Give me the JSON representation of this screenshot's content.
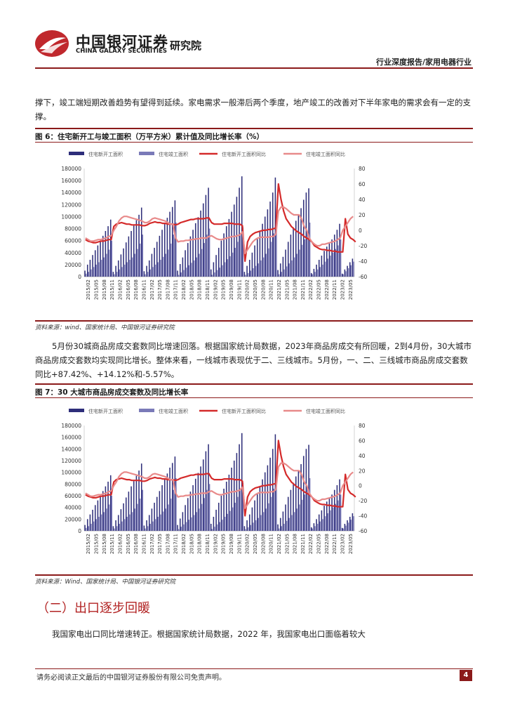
{
  "header": {
    "brand_cn": "中国银河证券",
    "brand_en": "CHINA GALAXY SECURITIES",
    "brand_inst": "研究院",
    "report_type": "行业深度报告/家用电器行业"
  },
  "paragraphs": [
    "撑下，竣工端短期改善趋势有望得到延续。家电需求一般滞后两个季度，地产竣工的改善对下半年家电的需求会有一定的支撑。",
    "5月份30城商品房成交套数同比增速回落。根据国家统计局数据，2023年商品房成交有所回暖，2到4月份，30大城市商品房成交套数均实现同比增长。整体来看，一线城市表现优于二、三线城市。5月份，一、二、三线城市商品房成交套数同比+87.42%、+14.12%和-5.57%。",
    "我国家电出口同比增速转正。根据国家统计局数据，2022 年，我国家电出口面临着较大"
  ],
  "figures": [
    {
      "title": "图 6：住宅新开工与竣工面积（万平方米）累计值及同比增长率（%）",
      "source": "资料来源：wind、国家统计局、中国银河证券研究院"
    },
    {
      "title": "图 7：30 大城市商品房成交套数及同比增长率",
      "source": "资料来源：Wind、国家统计局、中国银河证券研究院"
    }
  ],
  "section_title": "（二）出口逐步回暖",
  "footer": {
    "note": "请务必阅读正文最后的中国银河证券股份有限公司免责声明。",
    "page": "4"
  },
  "colors": {
    "brand": "#8b1a1a",
    "series_new": "#2e2e7a",
    "series_done": "#7a7ab8",
    "line_new": "#d42a2a",
    "line_done": "#e88a8a"
  },
  "chart_data": [
    {
      "type": "bar",
      "series": [
        {
          "name": "住宅新开工面积",
          "kind": "bar",
          "axis": "left",
          "values": [
            10000,
            20000,
            28000,
            36000,
            44000,
            52000,
            60000,
            68000,
            76000,
            84000,
            95000,
            8000,
            18000,
            27000,
            37000,
            47000,
            57000,
            67000,
            76000,
            85000,
            94000,
            103000,
            115000,
            9000,
            18000,
            27000,
            38000,
            48000,
            58000,
            68000,
            78000,
            88000,
            98000,
            108000,
            116000,
            127000,
            10000,
            21000,
            32000,
            44000,
            56000,
            67000,
            78000,
            89000,
            99000,
            110000,
            122000,
            136000,
            148000,
            12000,
            24000,
            36000,
            48000,
            60000,
            72000,
            84000,
            96000,
            108000,
            120000,
            133000,
            148000,
            167000,
            8000,
            18000,
            28000,
            40000,
            52000,
            64000,
            76000,
            88000,
            100000,
            112000,
            125000,
            140000,
            165000,
            11000,
            22000,
            33000,
            45000,
            58000,
            70000,
            82000,
            93000,
            103000,
            114000,
            128000,
            140000,
            147000,
            6000,
            13000,
            20000,
            28000,
            35000,
            43000,
            50000,
            56000,
            62000,
            70000,
            78000,
            88000,
            5000,
            12000,
            18000,
            24000,
            30000
          ]
        },
        {
          "name": "住宅竣工面积",
          "kind": "bar",
          "axis": "left",
          "values": [
            5000,
            8000,
            12000,
            16000,
            20000,
            24000,
            28000,
            32000,
            38000,
            45000,
            60000,
            4000,
            8000,
            12000,
            16000,
            20000,
            24000,
            28000,
            32000,
            38000,
            46000,
            55000,
            70000,
            4000,
            8000,
            12000,
            16000,
            20000,
            24000,
            28000,
            33000,
            38000,
            45000,
            55000,
            70000,
            90000,
            3000,
            7000,
            11000,
            15000,
            19000,
            23000,
            27000,
            32000,
            38000,
            46000,
            56000,
            70000,
            80000,
            3000,
            7000,
            11000,
            15000,
            19000,
            24000,
            29000,
            34000,
            40000,
            48000,
            58000,
            72000,
            82000,
            3000,
            6000,
            10000,
            14000,
            18000,
            22000,
            27000,
            32000,
            38000,
            47000,
            58000,
            72000,
            85000,
            4000,
            8000,
            12000,
            17000,
            22000,
            27000,
            32000,
            38000,
            45000,
            53000,
            62000,
            75000,
            90000,
            4000,
            8000,
            12000,
            16000,
            20000,
            25000,
            30000,
            35000,
            40000,
            46000,
            52000,
            62000,
            4000,
            9000,
            14000,
            19000,
            25000
          ]
        },
        {
          "name": "住宅新开工面积同比",
          "kind": "line",
          "axis": "right",
          "values": [
            -12,
            -14,
            -15,
            -16,
            -16,
            -15,
            -14,
            -14,
            -13,
            -12,
            -12,
            5,
            8,
            9,
            10,
            9,
            8,
            8,
            7,
            7,
            7,
            7,
            6,
            6,
            7,
            9,
            10,
            11,
            10,
            10,
            9,
            9,
            8,
            8,
            8,
            7,
            8,
            10,
            11,
            12,
            13,
            14,
            14,
            15,
            15,
            15,
            15,
            16,
            16,
            10,
            8,
            8,
            8,
            8,
            9,
            9,
            9,
            9,
            8,
            8,
            8,
            6,
            -40,
            -15,
            -8,
            -5,
            -3,
            -2,
            -1,
            0,
            0,
            1,
            1,
            2,
            3,
            60,
            40,
            25,
            15,
            10,
            5,
            2,
            -1,
            -3,
            -5,
            -8,
            -10,
            -12,
            -15,
            -20,
            -22,
            -24,
            -25,
            -25,
            -26,
            -26,
            -27,
            -27,
            -28,
            -28,
            -28,
            15,
            -5,
            -10,
            -12,
            -15
          ]
        },
        {
          "name": "住宅竣工面积同比",
          "kind": "line",
          "axis": "right",
          "values": [
            -10,
            -12,
            -14,
            -14,
            -13,
            -12,
            -12,
            -11,
            -10,
            -8,
            -7,
            0,
            5,
            12,
            16,
            18,
            18,
            17,
            16,
            15,
            14,
            13,
            12,
            10,
            10,
            12,
            15,
            16,
            15,
            14,
            13,
            12,
            10,
            8,
            8,
            -10,
            -15,
            -14,
            -14,
            -13,
            -13,
            -12,
            -12,
            -11,
            -11,
            -10,
            -10,
            -10,
            -8,
            -7,
            -9,
            -11,
            -12,
            -12,
            -11,
            -10,
            -9,
            -8,
            -8,
            -7,
            -6,
            -2,
            -30,
            -25,
            -20,
            -15,
            -12,
            -10,
            -9,
            -9,
            -9,
            -9,
            -8,
            -8,
            -5,
            25,
            30,
            30,
            28,
            25,
            22,
            20,
            20,
            20,
            15,
            5,
            0,
            -10,
            -15,
            -18,
            -20,
            -20,
            -18,
            -18,
            -17,
            -16,
            -15,
            -14,
            -12,
            -10,
            0,
            5,
            10,
            15,
            18
          ]
        }
      ],
      "x_tick_labels": [
        "2015/02",
        "2015/05",
        "2015/08",
        "2015/11",
        "2016/02",
        "2016/05",
        "2016/08",
        "2016/11",
        "2017/02",
        "2017/05",
        "2017/08",
        "2017/11",
        "2018/02",
        "2018/05",
        "2018/08",
        "2018/11",
        "2019/02",
        "2019/05",
        "2019/08",
        "2019/11",
        "2020/02",
        "2020/05",
        "2020/08",
        "2020/11",
        "2021/02",
        "2021/05",
        "2021/08",
        "2021/11",
        "2022/02",
        "2022/05",
        "2022/08",
        "2022/11",
        "2023/02",
        "2023/05"
      ],
      "y_left_ticks": [
        "0",
        "20000",
        "40000",
        "60000",
        "80000",
        "100000",
        "120000",
        "140000",
        "160000",
        "180000"
      ],
      "y_right_ticks": [
        "-60",
        "-40",
        "-20",
        "0",
        "20",
        "40",
        "60",
        "80"
      ],
      "ylim": [
        0,
        180000
      ],
      "ylim_right": [
        -60,
        80
      ],
      "legend": "top"
    },
    {
      "type": "bar",
      "series": [
        {
          "name": "住宅新开工面积",
          "kind": "bar",
          "axis": "left",
          "values": [
            10000,
            20000,
            28000,
            36000,
            44000,
            52000,
            60000,
            68000,
            76000,
            84000,
            95000,
            8000,
            18000,
            27000,
            37000,
            47000,
            57000,
            67000,
            76000,
            85000,
            94000,
            103000,
            115000,
            9000,
            18000,
            27000,
            38000,
            48000,
            58000,
            68000,
            78000,
            88000,
            98000,
            108000,
            116000,
            127000,
            10000,
            21000,
            32000,
            44000,
            56000,
            67000,
            78000,
            89000,
            99000,
            110000,
            122000,
            136000,
            148000,
            12000,
            24000,
            36000,
            48000,
            60000,
            72000,
            84000,
            96000,
            108000,
            120000,
            133000,
            148000,
            167000,
            8000,
            18000,
            28000,
            40000,
            52000,
            64000,
            76000,
            88000,
            100000,
            112000,
            125000,
            140000,
            165000,
            11000,
            22000,
            33000,
            45000,
            58000,
            70000,
            82000,
            93000,
            103000,
            114000,
            128000,
            140000,
            147000,
            6000,
            13000,
            20000,
            28000,
            35000,
            43000,
            50000,
            56000,
            62000,
            70000,
            78000,
            88000,
            5000,
            12000,
            18000,
            24000,
            30000
          ]
        },
        {
          "name": "住宅竣工面积",
          "kind": "bar",
          "axis": "left",
          "values": [
            5000,
            8000,
            12000,
            16000,
            20000,
            24000,
            28000,
            32000,
            38000,
            45000,
            60000,
            4000,
            8000,
            12000,
            16000,
            20000,
            24000,
            28000,
            32000,
            38000,
            46000,
            55000,
            70000,
            4000,
            8000,
            12000,
            16000,
            20000,
            24000,
            28000,
            33000,
            38000,
            45000,
            55000,
            70000,
            90000,
            3000,
            7000,
            11000,
            15000,
            19000,
            23000,
            27000,
            32000,
            38000,
            46000,
            56000,
            70000,
            80000,
            3000,
            7000,
            11000,
            15000,
            19000,
            24000,
            29000,
            34000,
            40000,
            48000,
            58000,
            72000,
            82000,
            3000,
            6000,
            10000,
            14000,
            18000,
            22000,
            27000,
            32000,
            38000,
            47000,
            58000,
            72000,
            85000,
            4000,
            8000,
            12000,
            17000,
            22000,
            27000,
            32000,
            38000,
            45000,
            53000,
            62000,
            75000,
            90000,
            4000,
            8000,
            12000,
            16000,
            20000,
            25000,
            30000,
            35000,
            40000,
            46000,
            52000,
            62000,
            4000,
            9000,
            14000,
            19000,
            25000
          ]
        },
        {
          "name": "住宅新开工面积同比",
          "kind": "line",
          "axis": "right",
          "values": [
            -12,
            -14,
            -15,
            -16,
            -16,
            -15,
            -14,
            -14,
            -13,
            -12,
            -12,
            5,
            8,
            9,
            10,
            9,
            8,
            8,
            7,
            7,
            7,
            7,
            6,
            6,
            7,
            9,
            10,
            11,
            10,
            10,
            9,
            9,
            8,
            8,
            8,
            7,
            8,
            10,
            11,
            12,
            13,
            14,
            14,
            15,
            15,
            15,
            15,
            16,
            16,
            10,
            8,
            8,
            8,
            8,
            9,
            9,
            9,
            9,
            8,
            8,
            8,
            6,
            -40,
            -15,
            -8,
            -5,
            -3,
            -2,
            -1,
            0,
            0,
            1,
            1,
            2,
            3,
            60,
            40,
            25,
            15,
            10,
            5,
            2,
            -1,
            -3,
            -5,
            -8,
            -10,
            -12,
            -15,
            -20,
            -22,
            -24,
            -25,
            -25,
            -26,
            -26,
            -27,
            -27,
            -28,
            -28,
            -28,
            15,
            -5,
            -10,
            -12,
            -15
          ]
        },
        {
          "name": "住宅竣工面积同比",
          "kind": "line",
          "axis": "right",
          "values": [
            -10,
            -12,
            -14,
            -14,
            -13,
            -12,
            -12,
            -11,
            -10,
            -8,
            -7,
            0,
            5,
            12,
            16,
            18,
            18,
            17,
            16,
            15,
            14,
            13,
            12,
            10,
            10,
            12,
            15,
            16,
            15,
            14,
            13,
            12,
            10,
            8,
            8,
            -10,
            -15,
            -14,
            -14,
            -13,
            -13,
            -12,
            -12,
            -11,
            -11,
            -10,
            -10,
            -10,
            -8,
            -7,
            -9,
            -11,
            -12,
            -12,
            -11,
            -10,
            -9,
            -8,
            -8,
            -7,
            -6,
            -2,
            -30,
            -25,
            -20,
            -15,
            -12,
            -10,
            -9,
            -9,
            -9,
            -9,
            -8,
            -8,
            -5,
            25,
            30,
            30,
            28,
            25,
            22,
            20,
            20,
            20,
            15,
            5,
            0,
            -10,
            -15,
            -18,
            -20,
            -20,
            -18,
            -18,
            -17,
            -16,
            -15,
            -14,
            -12,
            -10,
            0,
            5,
            10,
            15,
            18
          ]
        }
      ],
      "x_tick_labels": [
        "2015/02",
        "2015/05",
        "2015/08",
        "2015/11",
        "2016/02",
        "2016/05",
        "2016/08",
        "2016/11",
        "2017/02",
        "2017/05",
        "2017/08",
        "2017/11",
        "2018/02",
        "2018/05",
        "2018/08",
        "2018/11",
        "2019/02",
        "2019/05",
        "2019/08",
        "2019/11",
        "2020/02",
        "2020/05",
        "2020/08",
        "2020/11",
        "2021/02",
        "2021/05",
        "2021/08",
        "2021/11",
        "2022/02",
        "2022/05",
        "2022/08",
        "2022/11",
        "2023/02",
        "2023/05"
      ],
      "y_left_ticks": [
        "0",
        "20000",
        "40000",
        "60000",
        "80000",
        "100000",
        "120000",
        "140000",
        "160000",
        "180000"
      ],
      "y_right_ticks": [
        "-60",
        "-40",
        "-20",
        "0",
        "20",
        "40",
        "60",
        "80"
      ],
      "ylim": [
        0,
        180000
      ],
      "ylim_right": [
        -60,
        80
      ],
      "legend": "top"
    }
  ]
}
